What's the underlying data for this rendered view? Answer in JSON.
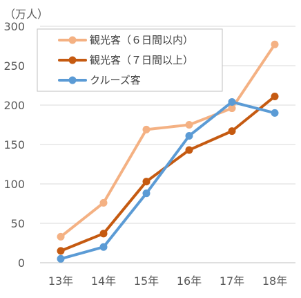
{
  "chart_data": {
    "type": "line",
    "unit_label": "（万人）",
    "categories": [
      "13年",
      "14年",
      "15年",
      "16年",
      "17年",
      "18年"
    ],
    "y_ticks": [
      0,
      50,
      100,
      150,
      200,
      250,
      300
    ],
    "ylim": [
      0,
      300
    ],
    "grid": true,
    "legend_placement": "top-left",
    "series": [
      {
        "name": "観光客（６日間以内）",
        "color": "#f4b183",
        "values": [
          33,
          76,
          169,
          175,
          196,
          277
        ]
      },
      {
        "name": "観光客（７日間以上）",
        "color": "#c55a11",
        "values": [
          15,
          37,
          103,
          143,
          167,
          211
        ]
      },
      {
        "name": "クルーズ客",
        "color": "#5b9bd5",
        "values": [
          5,
          20,
          88,
          161,
          204,
          190
        ]
      }
    ]
  }
}
